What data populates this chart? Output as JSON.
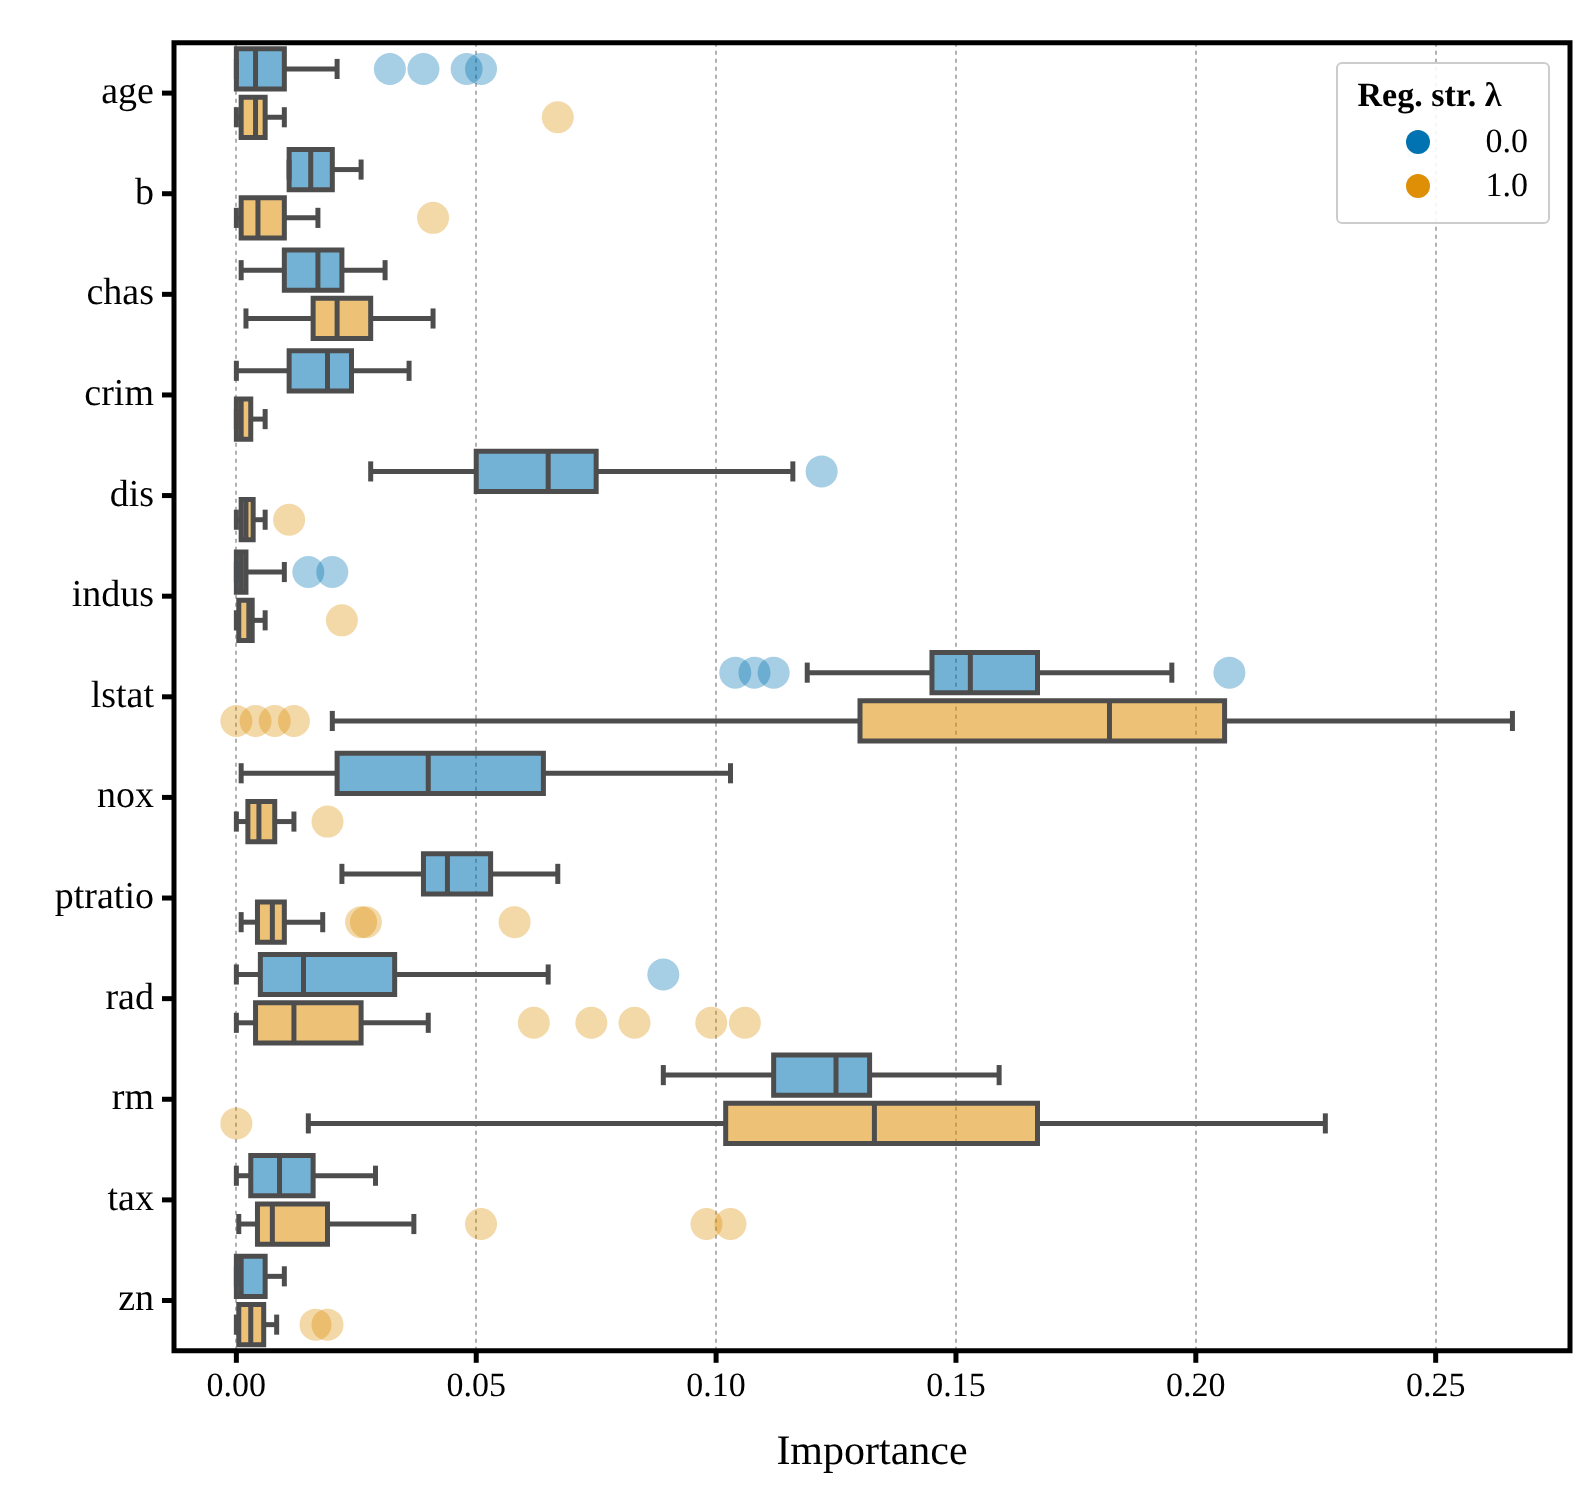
{
  "chart_data": {
    "type": "box",
    "orientation": "horizontal",
    "xlabel": "Importance",
    "legend_title": "Reg. str. λ",
    "legend": "top right",
    "grid": "x",
    "categories": [
      "age",
      "b",
      "chas",
      "crim",
      "dis",
      "indus",
      "lstat",
      "nox",
      "ptratio",
      "rad",
      "rm",
      "tax",
      "zn"
    ],
    "xlim": [
      -0.013,
      0.278
    ],
    "xticks": [
      {
        "value": 0,
        "label": "0.00"
      },
      {
        "value": 0.05,
        "label": "0.05"
      },
      {
        "value": 0.1,
        "label": "0.10"
      },
      {
        "value": 0.15,
        "label": "0.15"
      },
      {
        "value": 0.2,
        "label": "0.20"
      },
      {
        "value": 0.25,
        "label": "0.25"
      }
    ],
    "series": [
      {
        "name": "0.0",
        "color": "#0173b2",
        "boxes": [
          {
            "low": 0.0,
            "q1": 0.0,
            "median": 0.004,
            "q3": 0.01,
            "high": 0.021,
            "outliers": [
              0.032,
              0.039,
              0.048,
              0.051
            ]
          },
          {
            "low": 0.011,
            "q1": 0.011,
            "median": 0.0155,
            "q3": 0.02,
            "high": 0.026
          },
          {
            "low": 0.001,
            "q1": 0.01,
            "median": 0.017,
            "q3": 0.022,
            "high": 0.031
          },
          {
            "low": 0.0,
            "q1": 0.011,
            "median": 0.019,
            "q3": 0.024,
            "high": 0.036
          },
          {
            "low": 0.028,
            "q1": 0.05,
            "median": 0.065,
            "q3": 0.075,
            "high": 0.116,
            "outliers": [
              0.122
            ]
          },
          {
            "low": 0.0,
            "q1": 0.0,
            "median": 0.001,
            "q3": 0.002,
            "high": 0.01,
            "outliers": [
              0.015,
              0.02
            ]
          },
          {
            "low": 0.119,
            "q1": 0.145,
            "median": 0.153,
            "q3": 0.167,
            "high": 0.195,
            "outliers": [
              0.104,
              0.108,
              0.112,
              0.207
            ]
          },
          {
            "low": 0.001,
            "q1": 0.021,
            "median": 0.04,
            "q3": 0.064,
            "high": 0.103
          },
          {
            "low": 0.022,
            "q1": 0.039,
            "median": 0.044,
            "q3": 0.053,
            "high": 0.067
          },
          {
            "low": 0.0,
            "q1": 0.005,
            "median": 0.014,
            "q3": 0.033,
            "high": 0.065,
            "outliers": [
              0.089
            ]
          },
          {
            "low": 0.089,
            "q1": 0.112,
            "median": 0.125,
            "q3": 0.132,
            "high": 0.159
          },
          {
            "low": 0.0,
            "q1": 0.003,
            "median": 0.009,
            "q3": 0.016,
            "high": 0.029
          },
          {
            "low": 0.0,
            "q1": 0.0,
            "median": 0.001,
            "q3": 0.006,
            "high": 0.01
          }
        ]
      },
      {
        "name": "1.0",
        "color": "#de8f05",
        "boxes": [
          {
            "low": 0.0,
            "q1": 0.001,
            "median": 0.004,
            "q3": 0.006,
            "high": 0.01,
            "outliers": [
              0.067
            ]
          },
          {
            "low": 0.0,
            "q1": 0.001,
            "median": 0.0045,
            "q3": 0.01,
            "high": 0.017,
            "outliers": [
              0.041
            ]
          },
          {
            "low": 0.002,
            "q1": 0.016,
            "median": 0.021,
            "q3": 0.028,
            "high": 0.041
          },
          {
            "low": 0.0,
            "q1": 0.0,
            "median": 0.001,
            "q3": 0.003,
            "high": 0.006
          },
          {
            "low": 0.0,
            "q1": 0.001,
            "median": 0.002,
            "q3": 0.0035,
            "high": 0.006,
            "outliers": [
              0.011
            ]
          },
          {
            "low": 0.0,
            "q1": 0.0005,
            "median": 0.0026,
            "q3": 0.0033,
            "high": 0.006,
            "outliers": [
              0.022
            ]
          },
          {
            "low": 0.02,
            "q1": 0.13,
            "median": 0.182,
            "q3": 0.206,
            "high": 0.266,
            "outliers": [
              0.0,
              0.004,
              0.008,
              0.012
            ]
          },
          {
            "low": 0.0,
            "q1": 0.0024,
            "median": 0.0047,
            "q3": 0.008,
            "high": 0.012,
            "outliers": [
              0.019
            ]
          },
          {
            "low": 0.001,
            "q1": 0.0044,
            "median": 0.0075,
            "q3": 0.01,
            "high": 0.018,
            "outliers": [
              0.026,
              0.027,
              0.058
            ]
          },
          {
            "low": 0.0,
            "q1": 0.004,
            "median": 0.012,
            "q3": 0.026,
            "high": 0.04,
            "outliers": [
              0.062,
              0.074,
              0.083,
              0.099,
              0.106
            ]
          },
          {
            "low": 0.015,
            "q1": 0.102,
            "median": 0.133,
            "q3": 0.167,
            "high": 0.227,
            "outliers": [
              0.0
            ]
          },
          {
            "low": 0.0005,
            "q1": 0.0044,
            "median": 0.0075,
            "q3": 0.019,
            "high": 0.037,
            "outliers": [
              0.051,
              0.098,
              0.103
            ]
          },
          {
            "low": 0.0,
            "q1": 0.0005,
            "median": 0.003,
            "q3": 0.0057,
            "high": 0.0084,
            "outliers": [
              0.0165,
              0.019
            ]
          }
        ]
      }
    ]
  }
}
